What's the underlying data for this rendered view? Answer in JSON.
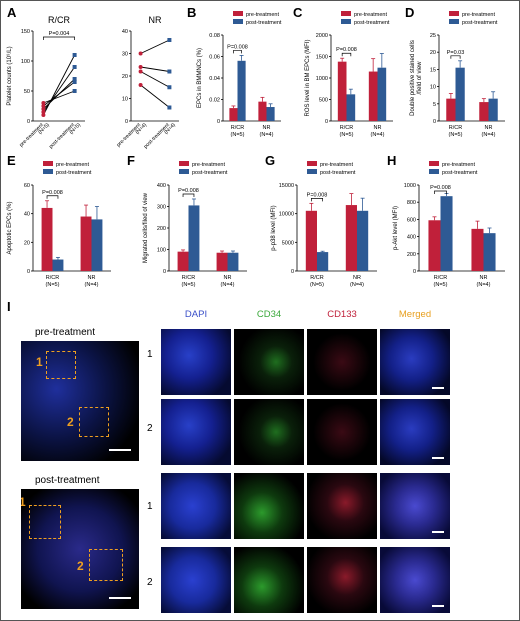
{
  "figure": {
    "panels": {
      "A": {
        "letter": "A"
      },
      "B": {
        "letter": "B"
      },
      "C": {
        "letter": "C"
      },
      "D": {
        "letter": "D"
      },
      "E": {
        "letter": "E"
      },
      "F": {
        "letter": "F"
      },
      "G": {
        "letter": "G"
      },
      "H": {
        "letter": "H"
      },
      "I": {
        "letter": "I"
      }
    },
    "legend": {
      "pre": "pre-treatment",
      "post": "post-treatment"
    },
    "colors": {
      "pre": "#c0203a",
      "post": "#2e5a94"
    },
    "microscopy": {
      "left_titles": [
        "pre-treatment",
        "post-treatment"
      ],
      "channels": [
        "DAPI",
        "CD34",
        "CD133",
        "Merged"
      ],
      "channel_colors": [
        "#3a4fc8",
        "#3aa83a",
        "#c0203a",
        "#e8a020"
      ],
      "row_labels": [
        "1",
        "2",
        "1",
        "2"
      ],
      "box_labels": [
        "1",
        "2",
        "1",
        "2"
      ]
    }
  },
  "chart_data": [
    {
      "id": "A1",
      "type": "line",
      "title": "R/CR",
      "ylabel": "Platelet counts (10⁹/L)",
      "categories": [
        "pre-treatment\n(N=5)",
        "post-treatment\n(N=5)"
      ],
      "ylim": [
        0,
        150
      ],
      "yticks": [
        0,
        50,
        100,
        150
      ],
      "annotation": "P=0.004",
      "series": [
        {
          "values": [
            10,
            110
          ]
        },
        {
          "values": [
            15,
            90
          ]
        },
        {
          "values": [
            20,
            70
          ]
        },
        {
          "values": [
            25,
            65
          ]
        },
        {
          "values": [
            30,
            50
          ]
        }
      ]
    },
    {
      "id": "A2",
      "type": "line",
      "title": "NR",
      "categories": [
        "pre-treatment\n(N=4)",
        "post-treatment\n(N=4)"
      ],
      "ylim": [
        0,
        40
      ],
      "yticks": [
        0,
        10,
        20,
        30,
        40
      ],
      "series": [
        {
          "values": [
            30,
            36
          ]
        },
        {
          "values": [
            24,
            22
          ]
        },
        {
          "values": [
            22,
            15
          ]
        },
        {
          "values": [
            16,
            6
          ]
        }
      ]
    },
    {
      "id": "B",
      "type": "bar",
      "ylabel": "EPCs in BMMNCs (%)",
      "categories": [
        "R/CR\n(N=5)",
        "NR\n(N=4)"
      ],
      "ylim": [
        0,
        0.08
      ],
      "yticks": [
        0,
        0.02,
        0.04,
        0.06,
        0.08
      ],
      "ytick_labels": [
        "0",
        "0.02",
        "0.04",
        "0.06",
        "0.08"
      ],
      "annotation": "P=0.008",
      "series": [
        {
          "name": "pre-treatment",
          "values": [
            0.012,
            0.018
          ],
          "errors": [
            0.002,
            0.004
          ]
        },
        {
          "name": "post-treatment",
          "values": [
            0.056,
            0.013
          ],
          "errors": [
            0.005,
            0.003
          ]
        }
      ]
    },
    {
      "id": "C",
      "type": "bar",
      "ylabel": "ROS level in BM EPCs (MFI)",
      "categories": [
        "R/CR\n(N=5)",
        "NR\n(N=4)"
      ],
      "ylim": [
        0,
        2000
      ],
      "yticks": [
        0,
        500,
        1000,
        1500,
        2000
      ],
      "annotation": "P=0.008",
      "series": [
        {
          "name": "pre-treatment",
          "values": [
            1380,
            1150
          ],
          "errors": [
            80,
            300
          ]
        },
        {
          "name": "post-treatment",
          "values": [
            620,
            1240
          ],
          "errors": [
            120,
            330
          ]
        }
      ]
    },
    {
      "id": "D",
      "type": "bar",
      "ylabel": "Double positive stained cells /field of view",
      "categories": [
        "R/CR\n(N=5)",
        "NR\n(N=4)"
      ],
      "ylim": [
        0,
        25
      ],
      "yticks": [
        0,
        5,
        10,
        15,
        20,
        25
      ],
      "annotation": "P=0.03",
      "series": [
        {
          "name": "pre-treatment",
          "values": [
            6.5,
            5.5
          ],
          "errors": [
            1.5,
            1.0
          ]
        },
        {
          "name": "post-treatment",
          "values": [
            15.5,
            6.5
          ],
          "errors": [
            2.0,
            2.0
          ]
        }
      ]
    },
    {
      "id": "E",
      "type": "bar",
      "ylabel": "Apoptotic EPCs (%)",
      "categories": [
        "R/CR\n(N=5)",
        "NR\n(N=4)"
      ],
      "ylim": [
        0,
        60
      ],
      "yticks": [
        0,
        20,
        40,
        60
      ],
      "annotation": "P=0.008",
      "series": [
        {
          "name": "pre-treatment",
          "values": [
            44,
            38
          ],
          "errors": [
            5,
            8
          ]
        },
        {
          "name": "post-treatment",
          "values": [
            8,
            36
          ],
          "errors": [
            1.5,
            9
          ]
        }
      ]
    },
    {
      "id": "F",
      "type": "bar",
      "ylabel": "Migrated cells/filed of view",
      "categories": [
        "R/CR\n(N=5)",
        "NR\n(N=4)"
      ],
      "ylim": [
        0,
        400
      ],
      "yticks": [
        0,
        100,
        200,
        300,
        400
      ],
      "annotation": "P=0.008",
      "series": [
        {
          "name": "pre-treatment",
          "values": [
            90,
            85
          ],
          "errors": [
            8,
            8
          ]
        },
        {
          "name": "post-treatment",
          "values": [
            305,
            85
          ],
          "errors": [
            30,
            8
          ]
        }
      ]
    },
    {
      "id": "G",
      "type": "bar",
      "ylabel": "p-p38 level (MFI)",
      "categories": [
        "R/CR\n(N=5)",
        "NR\n(N=4)"
      ],
      "ylim": [
        0,
        15000
      ],
      "yticks": [
        0,
        5000,
        10000,
        15000
      ],
      "annotation": "P=0.008",
      "series": [
        {
          "name": "pre-treatment",
          "values": [
            10500,
            11500
          ],
          "errors": [
            1300,
            2000
          ]
        },
        {
          "name": "post-treatment",
          "values": [
            3300,
            10500
          ],
          "errors": [
            150,
            2200
          ]
        }
      ]
    },
    {
      "id": "H",
      "type": "bar",
      "ylabel": "p-Akt level (MFI)",
      "categories": [
        "R/CR\n(N=5)",
        "NR\n(N=4)"
      ],
      "ylim": [
        0,
        1000
      ],
      "yticks": [
        0,
        200,
        400,
        600,
        800,
        1000
      ],
      "annotation": "P=0.008",
      "series": [
        {
          "name": "pre-treatment",
          "values": [
            590,
            490
          ],
          "errors": [
            40,
            90
          ]
        },
        {
          "name": "post-treatment",
          "values": [
            870,
            440
          ],
          "errors": [
            30,
            60
          ]
        }
      ]
    }
  ]
}
